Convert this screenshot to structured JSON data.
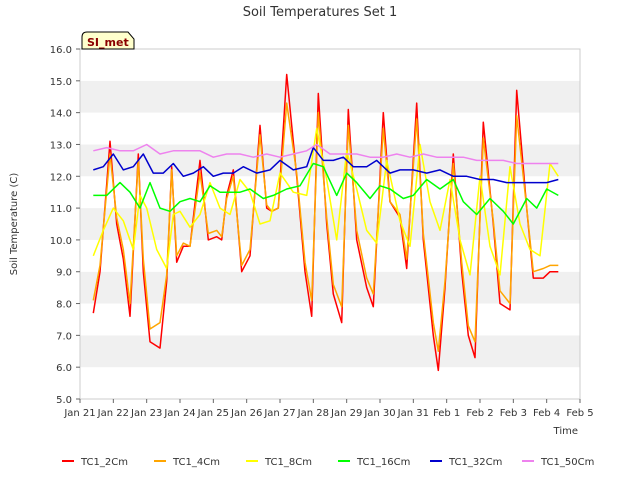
{
  "chart_data": {
    "type": "line",
    "title": "Soil Temperatures Set 1",
    "xlabel": "Time",
    "ylabel": "Soil Temperature (C)",
    "site_badge": "SI_met",
    "ylim": [
      5.0,
      16.0
    ],
    "xlim": [
      0,
      15
    ],
    "y_ticks": [
      "5.0",
      "6.0",
      "7.0",
      "8.0",
      "9.0",
      "10.0",
      "11.0",
      "12.0",
      "13.0",
      "14.0",
      "15.0",
      "16.0"
    ],
    "x_ticks": [
      "Jan 21",
      "Jan 22",
      "Jan 23",
      "Jan 24",
      "Jan 25",
      "Jan 26",
      "Jan 27",
      "Jan 28",
      "Jan 29",
      "Jan 30",
      "Jan 31",
      "Feb 1",
      "Feb 2",
      "Feb 3",
      "Feb 4",
      "Feb 5"
    ],
    "x_tick_values": [
      0,
      1,
      2,
      3,
      4,
      5,
      6,
      7,
      8,
      9,
      10,
      11,
      12,
      13,
      14,
      15
    ],
    "grid": "horizontal bands",
    "legend_position": "bottom",
    "series": [
      {
        "name": "TC1_2Cm",
        "color": "#ff0000",
        "x": [
          0.4,
          0.6,
          0.9,
          1.1,
          1.3,
          1.5,
          1.75,
          1.9,
          2.1,
          2.4,
          2.6,
          2.75,
          2.9,
          3.1,
          3.3,
          3.6,
          3.85,
          4.1,
          4.25,
          4.4,
          4.6,
          4.85,
          5.1,
          5.4,
          5.6,
          5.75,
          5.95,
          6.2,
          6.5,
          6.75,
          6.95,
          7.15,
          7.4,
          7.6,
          7.85,
          8.05,
          8.3,
          8.6,
          8.8,
          9.1,
          9.3,
          9.6,
          9.8,
          10.1,
          10.3,
          10.6,
          10.75,
          10.95,
          11.2,
          11.45,
          11.65,
          11.85,
          12.1,
          12.4,
          12.6,
          12.9,
          13.1,
          13.4,
          13.6,
          13.9,
          14.1,
          14.35
        ],
        "y": [
          7.7,
          9.0,
          13.1,
          10.5,
          9.4,
          7.6,
          12.7,
          9.0,
          6.8,
          6.6,
          8.7,
          12.3,
          9.3,
          9.8,
          9.8,
          12.5,
          10.0,
          10.1,
          10.0,
          11.4,
          12.2,
          9.0,
          9.5,
          13.6,
          11.0,
          10.9,
          11.0,
          15.2,
          12.0,
          9.0,
          7.6,
          14.6,
          10.5,
          8.3,
          7.4,
          14.1,
          10.0,
          8.5,
          7.9,
          14.0,
          11.2,
          10.7,
          9.1,
          14.3,
          10.0,
          7.0,
          5.9,
          8.5,
          12.7,
          9.0,
          7.0,
          6.3,
          13.7,
          10.5,
          8.0,
          7.8,
          14.7,
          11.0,
          8.8,
          8.8,
          9.0,
          9.0
        ]
      },
      {
        "name": "TC1_4Cm",
        "color": "#ffa500",
        "x": [
          0.4,
          0.6,
          0.9,
          1.1,
          1.3,
          1.5,
          1.75,
          1.9,
          2.1,
          2.4,
          2.6,
          2.75,
          2.9,
          3.1,
          3.3,
          3.6,
          3.85,
          4.1,
          4.25,
          4.4,
          4.6,
          4.85,
          5.1,
          5.4,
          5.6,
          5.75,
          5.95,
          6.2,
          6.5,
          6.75,
          6.95,
          7.15,
          7.4,
          7.6,
          7.85,
          8.05,
          8.3,
          8.6,
          8.8,
          9.1,
          9.3,
          9.6,
          9.8,
          10.1,
          10.3,
          10.6,
          10.75,
          10.95,
          11.2,
          11.45,
          11.65,
          11.85,
          12.1,
          12.4,
          12.6,
          12.9,
          13.1,
          13.4,
          13.6,
          13.9,
          14.1,
          14.35
        ],
        "y": [
          8.1,
          9.2,
          12.7,
          10.7,
          9.7,
          8.0,
          12.5,
          9.4,
          7.2,
          7.4,
          8.9,
          12.2,
          9.5,
          9.9,
          9.8,
          12.1,
          10.2,
          10.3,
          10.1,
          11.3,
          12.0,
          9.2,
          9.7,
          13.3,
          11.1,
          10.9,
          11.0,
          14.3,
          12.1,
          9.3,
          8.1,
          14.0,
          10.7,
          8.6,
          7.9,
          13.6,
          10.3,
          8.8,
          8.3,
          13.5,
          11.2,
          10.8,
          9.4,
          13.8,
          10.2,
          7.4,
          6.5,
          8.7,
          12.4,
          9.3,
          7.3,
          6.8,
          13.2,
          10.6,
          8.4,
          8.0,
          13.9,
          11.0,
          9.0,
          9.1,
          9.2,
          9.2
        ]
      },
      {
        "name": "TC1_8Cm",
        "color": "#ffff00",
        "x": [
          0.4,
          0.7,
          1.0,
          1.3,
          1.6,
          1.8,
          2.0,
          2.3,
          2.6,
          2.8,
          3.0,
          3.3,
          3.6,
          3.9,
          4.2,
          4.5,
          4.8,
          5.1,
          5.4,
          5.7,
          6.0,
          6.4,
          6.8,
          7.1,
          7.4,
          7.7,
          8.0,
          8.3,
          8.6,
          8.9,
          9.2,
          9.6,
          9.9,
          10.2,
          10.5,
          10.8,
          11.1,
          11.4,
          11.7,
          12.0,
          12.3,
          12.6,
          12.9,
          13.2,
          13.5,
          13.8,
          14.1,
          14.35
        ],
        "y": [
          9.5,
          10.3,
          11.0,
          10.6,
          9.7,
          11.4,
          11.0,
          9.7,
          9.1,
          10.8,
          10.9,
          10.4,
          10.8,
          11.8,
          11.0,
          10.8,
          11.9,
          11.5,
          10.5,
          10.6,
          12.1,
          11.5,
          11.4,
          13.5,
          11.9,
          10.0,
          12.8,
          11.6,
          10.3,
          9.9,
          12.5,
          10.6,
          9.8,
          13.0,
          11.2,
          10.3,
          11.9,
          10.0,
          8.9,
          12.0,
          9.8,
          8.9,
          12.3,
          10.5,
          9.7,
          9.5,
          12.4,
          12.0
        ]
      },
      {
        "name": "TC1_16Cm",
        "color": "#00ff00",
        "x": [
          0.4,
          0.8,
          1.2,
          1.5,
          1.8,
          2.1,
          2.4,
          2.7,
          3.0,
          3.3,
          3.6,
          3.9,
          4.2,
          4.5,
          4.8,
          5.1,
          5.5,
          5.8,
          6.2,
          6.6,
          7.0,
          7.3,
          7.7,
          8.0,
          8.3,
          8.7,
          9.0,
          9.3,
          9.7,
          10.0,
          10.4,
          10.8,
          11.2,
          11.5,
          11.9,
          12.3,
          12.7,
          13.0,
          13.4,
          13.7,
          14.0,
          14.35
        ],
        "y": [
          11.4,
          11.4,
          11.8,
          11.5,
          11.0,
          11.8,
          11.0,
          10.9,
          11.2,
          11.3,
          11.2,
          11.7,
          11.5,
          11.5,
          11.5,
          11.6,
          11.3,
          11.4,
          11.6,
          11.7,
          12.4,
          12.3,
          11.4,
          12.1,
          11.8,
          11.3,
          11.7,
          11.6,
          11.3,
          11.4,
          11.9,
          11.6,
          11.9,
          11.2,
          10.8,
          11.3,
          10.9,
          10.5,
          11.3,
          11.0,
          11.6,
          11.4
        ]
      },
      {
        "name": "TC1_32Cm",
        "color": "#0000cd",
        "x": [
          0.4,
          0.7,
          1.0,
          1.3,
          1.6,
          1.9,
          2.2,
          2.5,
          2.8,
          3.1,
          3.4,
          3.7,
          4.0,
          4.3,
          4.6,
          4.9,
          5.3,
          5.7,
          6.0,
          6.4,
          6.8,
          7.0,
          7.3,
          7.6,
          7.9,
          8.2,
          8.6,
          8.9,
          9.3,
          9.6,
          10.0,
          10.4,
          10.8,
          11.2,
          11.6,
          12.0,
          12.4,
          12.8,
          13.2,
          13.6,
          14.0,
          14.35
        ],
        "y": [
          12.2,
          12.3,
          12.7,
          12.2,
          12.3,
          12.7,
          12.1,
          12.1,
          12.4,
          12.0,
          12.1,
          12.3,
          12.0,
          12.1,
          12.1,
          12.3,
          12.1,
          12.2,
          12.5,
          12.2,
          12.3,
          12.9,
          12.5,
          12.5,
          12.6,
          12.3,
          12.3,
          12.5,
          12.1,
          12.2,
          12.2,
          12.1,
          12.2,
          12.0,
          12.0,
          11.9,
          11.9,
          11.8,
          11.8,
          11.8,
          11.8,
          11.9
        ]
      },
      {
        "name": "TC1_50Cm",
        "color": "#ee82ee",
        "x": [
          0.4,
          0.8,
          1.2,
          1.6,
          2.0,
          2.4,
          2.8,
          3.2,
          3.6,
          4.0,
          4.4,
          4.8,
          5.2,
          5.6,
          6.0,
          6.4,
          6.8,
          7.1,
          7.5,
          7.9,
          8.3,
          8.7,
          9.1,
          9.5,
          9.9,
          10.3,
          10.7,
          11.1,
          11.5,
          11.9,
          12.3,
          12.7,
          13.1,
          13.5,
          13.9,
          14.35
        ],
        "y": [
          12.8,
          12.9,
          12.8,
          12.8,
          13.0,
          12.7,
          12.8,
          12.8,
          12.8,
          12.6,
          12.7,
          12.7,
          12.6,
          12.7,
          12.6,
          12.7,
          12.8,
          13.0,
          12.7,
          12.7,
          12.7,
          12.6,
          12.6,
          12.7,
          12.6,
          12.7,
          12.6,
          12.6,
          12.6,
          12.5,
          12.5,
          12.5,
          12.4,
          12.4,
          12.4,
          12.4
        ]
      }
    ]
  }
}
